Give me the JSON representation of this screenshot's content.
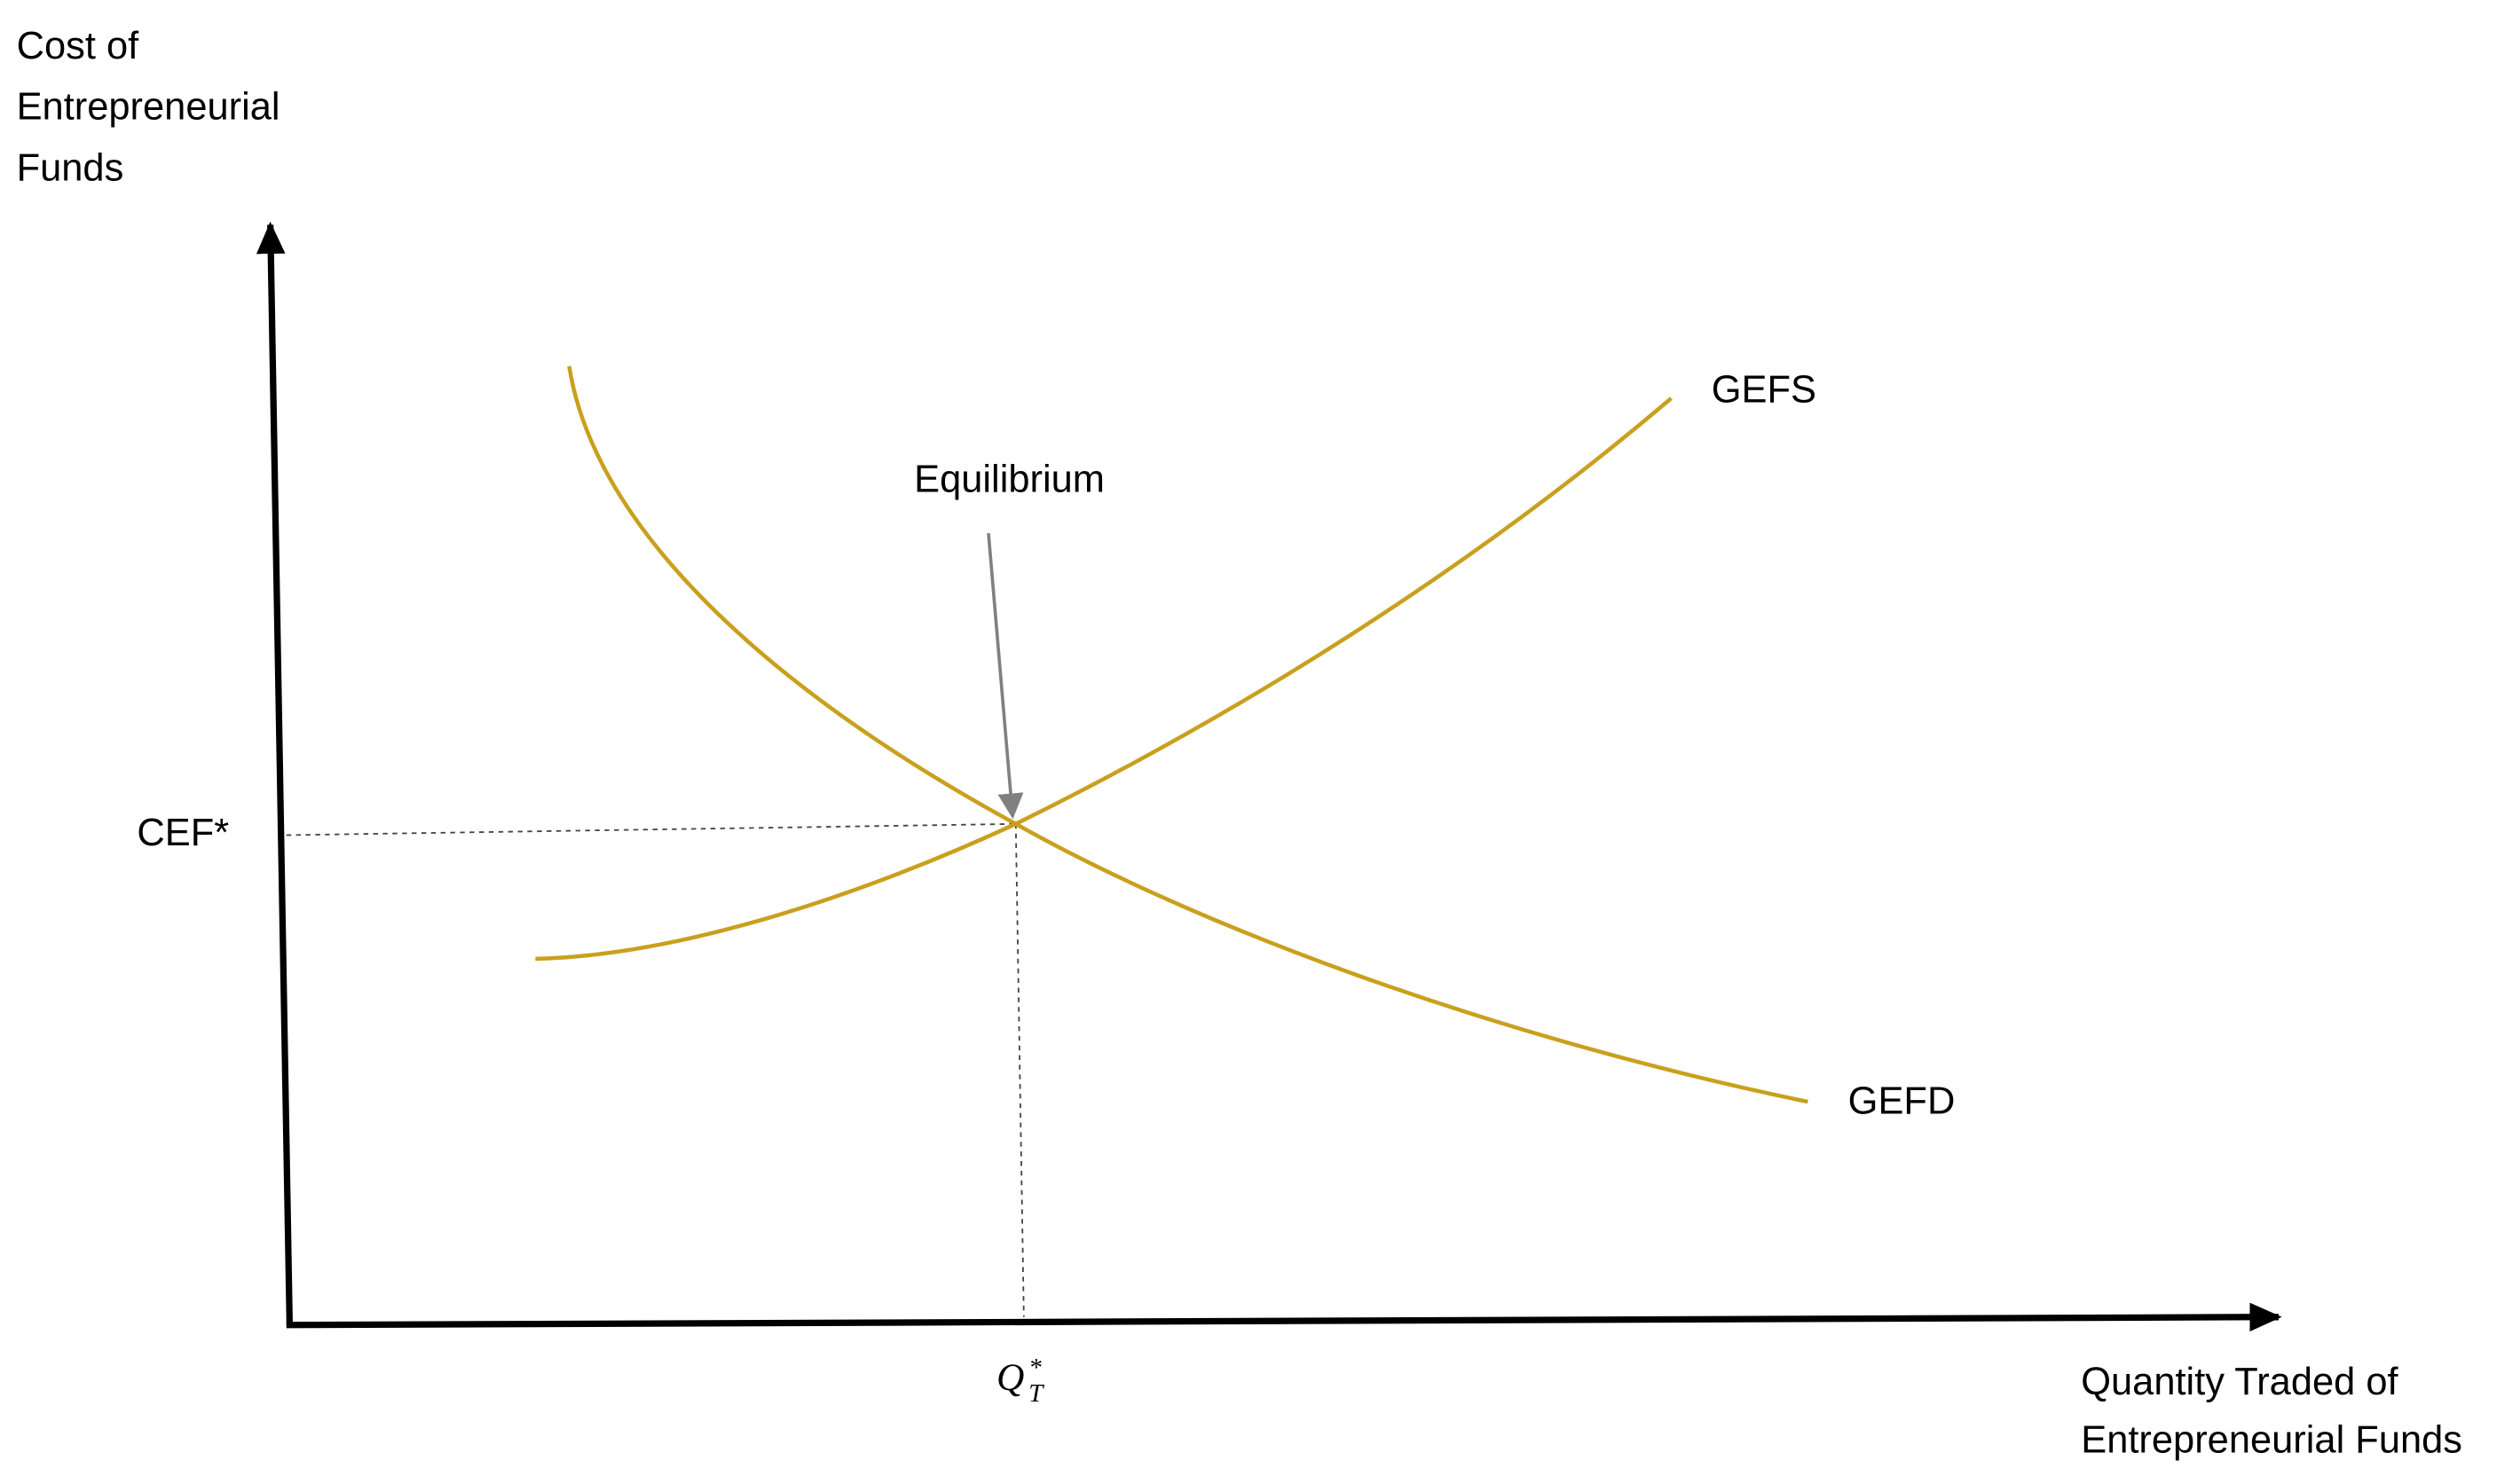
{
  "y_axis_label": [
    "Cost of",
    "Entrepreneurial",
    "Funds"
  ],
  "x_axis_label": [
    "Quantity Traded of",
    "Entrepreneurial Funds"
  ],
  "equilibrium_label": "Equilibrium",
  "supply_label": "GEFS",
  "demand_label": "GEFD",
  "price_label": "CEF*",
  "quantity_label": {
    "base": "Q",
    "sub": "T",
    "sup": "*"
  }
}
